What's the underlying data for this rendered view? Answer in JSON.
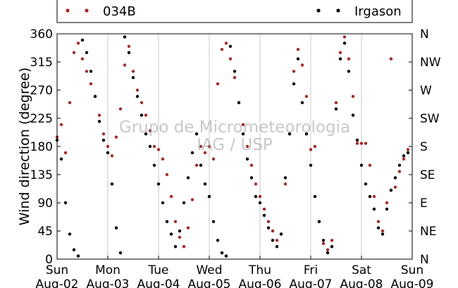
{
  "chart_data": {
    "type": "scatter",
    "ylabel": "Wind direction (degree)",
    "ylim": [
      0,
      360
    ],
    "y_ticks": [
      0,
      45,
      90,
      135,
      180,
      225,
      270,
      315,
      360
    ],
    "y_ticks_right": [
      "N",
      "NE",
      "E",
      "SE",
      "S",
      "SW",
      "W",
      "NW",
      "N"
    ],
    "x_ticks": [
      {
        "day": "Sun",
        "date": "Aug-02"
      },
      {
        "day": "Mon",
        "date": "Aug-03"
      },
      {
        "day": "Tue",
        "date": "Aug-04"
      },
      {
        "day": "Wed",
        "date": "Aug-05"
      },
      {
        "day": "Thu",
        "date": "Aug-06"
      },
      {
        "day": "Fri",
        "date": "Aug-07"
      },
      {
        "day": "Sat",
        "date": "Aug-08"
      },
      {
        "day": "Sun",
        "date": "Aug-09"
      }
    ],
    "xlim": [
      "2009-08-02",
      "2009-08-09"
    ],
    "grid": "vertical",
    "legend": "top",
    "watermark": [
      "Grupo de Micrometeorologia",
      "IAG / USP"
    ],
    "series": [
      {
        "name": "034B",
        "color": "#a52a2a",
        "points": [
          {
            "t": "2009-08-02 00:00",
            "dir": 195
          },
          {
            "t": "2009-08-02 02:00",
            "dir": 215
          },
          {
            "t": "2009-08-02 04:00",
            "dir": 170
          },
          {
            "t": "2009-08-02 06:00",
            "dir": 250
          },
          {
            "t": "2009-08-02 08:00",
            "dir": 330
          },
          {
            "t": "2009-08-02 10:00",
            "dir": 345
          },
          {
            "t": "2009-08-02 12:00",
            "dir": 320
          },
          {
            "t": "2009-08-02 14:00",
            "dir": 300
          },
          {
            "t": "2009-08-02 16:00",
            "dir": 280
          },
          {
            "t": "2009-08-02 18:00",
            "dir": 260
          },
          {
            "t": "2009-08-02 20:00",
            "dir": 230
          },
          {
            "t": "2009-08-02 22:00",
            "dir": 200
          },
          {
            "t": "2009-08-03 00:00",
            "dir": 180
          },
          {
            "t": "2009-08-03 02:00",
            "dir": 165
          },
          {
            "t": "2009-08-03 04:00",
            "dir": 195
          },
          {
            "t": "2009-08-03 06:00",
            "dir": 240
          },
          {
            "t": "2009-08-03 08:00",
            "dir": 310
          },
          {
            "t": "2009-08-03 10:00",
            "dir": 340
          },
          {
            "t": "2009-08-03 12:00",
            "dir": 300
          },
          {
            "t": "2009-08-03 14:00",
            "dir": 270
          },
          {
            "t": "2009-08-03 16:00",
            "dir": 250
          },
          {
            "t": "2009-08-03 18:00",
            "dir": 230
          },
          {
            "t": "2009-08-03 20:00",
            "dir": 205
          },
          {
            "t": "2009-08-03 22:00",
            "dir": 180
          },
          {
            "t": "2009-08-04 00:00",
            "dir": 175
          },
          {
            "t": "2009-08-04 02:00",
            "dir": 160
          },
          {
            "t": "2009-08-04 04:00",
            "dir": 135
          },
          {
            "t": "2009-08-04 06:00",
            "dir": 100
          },
          {
            "t": "2009-08-04 08:00",
            "dir": 60
          },
          {
            "t": "2009-08-04 10:00",
            "dir": 35
          },
          {
            "t": "2009-08-04 12:00",
            "dir": 20
          },
          {
            "t": "2009-08-04 14:00",
            "dir": 50
          },
          {
            "t": "2009-08-04 16:00",
            "dir": 95
          },
          {
            "t": "2009-08-04 18:00",
            "dir": 150
          },
          {
            "t": "2009-08-04 20:00",
            "dir": 180
          },
          {
            "t": "2009-08-04 22:00",
            "dir": 170
          },
          {
            "t": "2009-08-05 00:00",
            "dir": 180
          },
          {
            "t": "2009-08-05 02:00",
            "dir": 160
          },
          {
            "t": "2009-08-05 04:00",
            "dir": 280
          },
          {
            "t": "2009-08-05 06:00",
            "dir": 335
          },
          {
            "t": "2009-08-05 08:00",
            "dir": 345
          },
          {
            "t": "2009-08-05 10:00",
            "dir": 320
          },
          {
            "t": "2009-08-05 12:00",
            "dir": 290
          },
          {
            "t": "2009-08-05 14:00",
            "dir": 250
          },
          {
            "t": "2009-08-05 16:00",
            "dir": 215
          },
          {
            "t": "2009-08-05 18:00",
            "dir": 180
          },
          {
            "t": "2009-08-05 20:00",
            "dir": 150
          },
          {
            "t": "2009-08-05 22:00",
            "dir": 120
          },
          {
            "t": "2009-08-06 00:00",
            "dir": 100
          },
          {
            "t": "2009-08-06 02:00",
            "dir": 80
          },
          {
            "t": "2009-08-06 04:00",
            "dir": 60
          },
          {
            "t": "2009-08-06 06:00",
            "dir": 45
          },
          {
            "t": "2009-08-06 08:00",
            "dir": 30
          },
          {
            "t": "2009-08-06 10:00",
            "dir": 40
          },
          {
            "t": "2009-08-06 12:00",
            "dir": 120
          },
          {
            "t": "2009-08-06 14:00",
            "dir": 200
          },
          {
            "t": "2009-08-06 16:00",
            "dir": 300
          },
          {
            "t": "2009-08-06 18:00",
            "dir": 335
          },
          {
            "t": "2009-08-06 20:00",
            "dir": 310
          },
          {
            "t": "2009-08-06 22:00",
            "dir": 260
          },
          {
            "t": "2009-08-07 00:00",
            "dir": 175
          },
          {
            "t": "2009-08-07 02:00",
            "dir": 180
          },
          {
            "t": "2009-08-07 04:00",
            "dir": 60
          },
          {
            "t": "2009-08-07 06:00",
            "dir": 25
          },
          {
            "t": "2009-08-07 08:00",
            "dir": 15
          },
          {
            "t": "2009-08-07 10:00",
            "dir": 30
          },
          {
            "t": "2009-08-07 12:00",
            "dir": 250
          },
          {
            "t": "2009-08-07 14:00",
            "dir": 330
          },
          {
            "t": "2009-08-07 16:00",
            "dir": 355
          },
          {
            "t": "2009-08-07 18:00",
            "dir": 320
          },
          {
            "t": "2009-08-07 20:00",
            "dir": 260
          },
          {
            "t": "2009-08-07 22:00",
            "dir": 185
          },
          {
            "t": "2009-08-08 00:00",
            "dir": 185
          },
          {
            "t": "2009-08-08 02:00",
            "dir": 185
          },
          {
            "t": "2009-08-08 04:00",
            "dir": 150
          },
          {
            "t": "2009-08-08 06:00",
            "dir": 100
          },
          {
            "t": "2009-08-08 08:00",
            "dir": 60
          },
          {
            "t": "2009-08-08 10:00",
            "dir": 45
          },
          {
            "t": "2009-08-08 12:00",
            "dir": 90
          },
          {
            "t": "2009-08-08 14:00",
            "dir": 320
          },
          {
            "t": "2009-08-08 16:00",
            "dir": 115
          },
          {
            "t": "2009-08-08 18:00",
            "dir": 140
          },
          {
            "t": "2009-08-08 20:00",
            "dir": 160
          },
          {
            "t": "2009-08-08 22:00",
            "dir": 175
          }
        ]
      },
      {
        "name": "Irgason",
        "color": "#000000",
        "points": [
          {
            "t": "2009-08-02 00:00",
            "dir": 190
          },
          {
            "t": "2009-08-02 02:00",
            "dir": 160
          },
          {
            "t": "2009-08-02 04:00",
            "dir": 90
          },
          {
            "t": "2009-08-02 06:00",
            "dir": 40
          },
          {
            "t": "2009-08-02 08:00",
            "dir": 15
          },
          {
            "t": "2009-08-02 10:00",
            "dir": 5
          },
          {
            "t": "2009-08-02 12:00",
            "dir": 350
          },
          {
            "t": "2009-08-02 14:00",
            "dir": 330
          },
          {
            "t": "2009-08-02 16:00",
            "dir": 300
          },
          {
            "t": "2009-08-02 18:00",
            "dir": 260
          },
          {
            "t": "2009-08-02 20:00",
            "dir": 220
          },
          {
            "t": "2009-08-02 22:00",
            "dir": 190
          },
          {
            "t": "2009-08-03 00:00",
            "dir": 170
          },
          {
            "t": "2009-08-03 02:00",
            "dir": 120
          },
          {
            "t": "2009-08-03 04:00",
            "dir": 50
          },
          {
            "t": "2009-08-03 06:00",
            "dir": 10
          },
          {
            "t": "2009-08-03 08:00",
            "dir": 355
          },
          {
            "t": "2009-08-03 10:00",
            "dir": 330
          },
          {
            "t": "2009-08-03 12:00",
            "dir": 290
          },
          {
            "t": "2009-08-03 14:00",
            "dir": 260
          },
          {
            "t": "2009-08-03 16:00",
            "dir": 230
          },
          {
            "t": "2009-08-03 18:00",
            "dir": 200
          },
          {
            "t": "2009-08-03 20:00",
            "dir": 180
          },
          {
            "t": "2009-08-03 22:00",
            "dir": 150
          },
          {
            "t": "2009-08-04 00:00",
            "dir": 120
          },
          {
            "t": "2009-08-04 02:00",
            "dir": 90
          },
          {
            "t": "2009-08-04 04:00",
            "dir": 60
          },
          {
            "t": "2009-08-04 06:00",
            "dir": 40
          },
          {
            "t": "2009-08-04 08:00",
            "dir": 20
          },
          {
            "t": "2009-08-04 10:00",
            "dir": 45
          },
          {
            "t": "2009-08-04 12:00",
            "dir": 90
          },
          {
            "t": "2009-08-04 14:00",
            "dir": 130
          },
          {
            "t": "2009-08-04 16:00",
            "dir": 170
          },
          {
            "t": "2009-08-04 18:00",
            "dir": 200
          },
          {
            "t": "2009-08-04 20:00",
            "dir": 150
          },
          {
            "t": "2009-08-04 22:00",
            "dir": 120
          },
          {
            "t": "2009-08-05 00:00",
            "dir": 100
          },
          {
            "t": "2009-08-05 02:00",
            "dir": 60
          },
          {
            "t": "2009-08-05 04:00",
            "dir": 30
          },
          {
            "t": "2009-08-05 06:00",
            "dir": 10
          },
          {
            "t": "2009-08-05 08:00",
            "dir": 5
          },
          {
            "t": "2009-08-05 10:00",
            "dir": 340
          },
          {
            "t": "2009-08-05 12:00",
            "dir": 300
          },
          {
            "t": "2009-08-05 14:00",
            "dir": 250
          },
          {
            "t": "2009-08-05 16:00",
            "dir": 200
          },
          {
            "t": "2009-08-05 18:00",
            "dir": 160
          },
          {
            "t": "2009-08-05 20:00",
            "dir": 130
          },
          {
            "t": "2009-08-05 22:00",
            "dir": 100
          },
          {
            "t": "2009-08-06 00:00",
            "dir": 90
          },
          {
            "t": "2009-08-06 02:00",
            "dir": 70
          },
          {
            "t": "2009-08-06 04:00",
            "dir": 50
          },
          {
            "t": "2009-08-06 06:00",
            "dir": 30
          },
          {
            "t": "2009-08-06 08:00",
            "dir": 20
          },
          {
            "t": "2009-08-06 10:00",
            "dir": 40
          },
          {
            "t": "2009-08-06 12:00",
            "dir": 130
          },
          {
            "t": "2009-08-06 14:00",
            "dir": 200
          },
          {
            "t": "2009-08-06 16:00",
            "dir": 280
          },
          {
            "t": "2009-08-06 18:00",
            "dir": 320
          },
          {
            "t": "2009-08-06 20:00",
            "dir": 250
          },
          {
            "t": "2009-08-06 22:00",
            "dir": 200
          },
          {
            "t": "2009-08-07 00:00",
            "dir": 150
          },
          {
            "t": "2009-08-07 02:00",
            "dir": 100
          },
          {
            "t": "2009-08-07 04:00",
            "dir": 60
          },
          {
            "t": "2009-08-07 06:00",
            "dir": 30
          },
          {
            "t": "2009-08-07 08:00",
            "dir": 10
          },
          {
            "t": "2009-08-07 10:00",
            "dir": 20
          },
          {
            "t": "2009-08-07 12:00",
            "dir": 240
          },
          {
            "t": "2009-08-07 14:00",
            "dir": 320
          },
          {
            "t": "2009-08-07 16:00",
            "dir": 345
          },
          {
            "t": "2009-08-07 18:00",
            "dir": 300
          },
          {
            "t": "2009-08-07 20:00",
            "dir": 230
          },
          {
            "t": "2009-08-07 22:00",
            "dir": 190
          },
          {
            "t": "2009-08-08 00:00",
            "dir": 150
          },
          {
            "t": "2009-08-08 02:00",
            "dir": 120
          },
          {
            "t": "2009-08-08 04:00",
            "dir": 100
          },
          {
            "t": "2009-08-08 06:00",
            "dir": 80
          },
          {
            "t": "2009-08-08 08:00",
            "dir": 50
          },
          {
            "t": "2009-08-08 10:00",
            "dir": 40
          },
          {
            "t": "2009-08-08 12:00",
            "dir": 80
          },
          {
            "t": "2009-08-08 14:00",
            "dir": 110
          },
          {
            "t": "2009-08-08 16:00",
            "dir": 130
          },
          {
            "t": "2009-08-08 18:00",
            "dir": 150
          },
          {
            "t": "2009-08-08 20:00",
            "dir": 165
          },
          {
            "t": "2009-08-08 22:00",
            "dir": 170
          }
        ]
      }
    ]
  }
}
